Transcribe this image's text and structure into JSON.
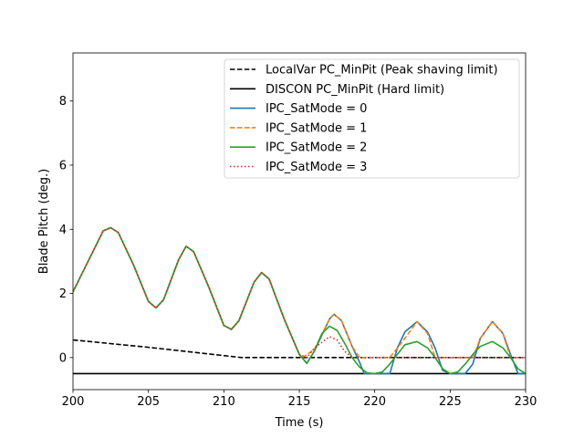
{
  "chart_data": {
    "type": "line",
    "title": "",
    "xlabel": "Time (s)",
    "ylabel": "Blade Pitch (deg.)",
    "xlim": [
      200,
      230
    ],
    "ylim": [
      -1.0,
      9.5
    ],
    "xticks": [
      200,
      205,
      210,
      215,
      220,
      225,
      230
    ],
    "yticks": [
      0,
      2,
      4,
      6,
      8
    ],
    "grid": false,
    "legend_position": "upper right",
    "series": [
      {
        "name": "LocalVar PC_MinPit (Peak shaving limit)",
        "color": "#000000",
        "style": "dashed",
        "x": [
          200,
          205,
          211.2,
          230
        ],
        "y": [
          0.55,
          0.32,
          0.0,
          0.0
        ]
      },
      {
        "name": "DISCON PC_MinPit (Hard limit)",
        "color": "#000000",
        "style": "solid",
        "x": [
          200,
          230
        ],
        "y": [
          -0.5,
          -0.5
        ]
      },
      {
        "name": "IPC_SatMode = 0",
        "color": "#1f77b4",
        "style": "solid",
        "x": [
          200,
          201,
          202,
          202.5,
          203,
          204,
          205,
          205.5,
          206,
          207,
          207.5,
          208,
          209,
          210,
          210.5,
          211,
          212,
          212.5,
          213,
          214,
          215,
          215.5,
          216,
          217,
          217.3,
          217.8,
          218.5,
          219,
          219.3,
          220,
          220.5,
          221,
          221.5,
          222,
          222.8,
          223.5,
          224,
          224.5,
          225,
          225.5,
          226,
          226.5,
          227,
          227.8,
          228.5,
          229,
          229.5,
          230
        ],
        "y": [
          2.05,
          3.0,
          3.95,
          4.05,
          3.9,
          2.9,
          1.75,
          1.55,
          1.8,
          3.05,
          3.47,
          3.3,
          2.2,
          1.0,
          0.88,
          1.15,
          2.35,
          2.65,
          2.45,
          1.2,
          0.1,
          -0.18,
          0.2,
          1.2,
          1.35,
          1.15,
          0.35,
          -0.15,
          -0.5,
          -0.5,
          -0.5,
          -0.5,
          0.3,
          0.8,
          1.12,
          0.8,
          0.3,
          -0.4,
          -0.5,
          -0.5,
          -0.5,
          -0.2,
          0.6,
          1.12,
          0.75,
          0.1,
          -0.5,
          -0.5
        ]
      },
      {
        "name": "IPC_SatMode = 1",
        "color": "#ff7f0e",
        "style": "dashed",
        "x": [
          200,
          201,
          202,
          202.5,
          203,
          204,
          205,
          205.5,
          206,
          207,
          207.5,
          208,
          209,
          210,
          210.5,
          211,
          212,
          212.5,
          213,
          214,
          215,
          215.2,
          216,
          217,
          217.3,
          217.8,
          218.5,
          219,
          220,
          221,
          222,
          222.8,
          223.5,
          224,
          225,
          226,
          226.5,
          227,
          227.8,
          228.5,
          229,
          230
        ],
        "y": [
          2.05,
          3.0,
          3.95,
          4.05,
          3.9,
          2.9,
          1.75,
          1.55,
          1.8,
          3.05,
          3.47,
          3.3,
          2.2,
          1.0,
          0.88,
          1.15,
          2.35,
          2.65,
          2.45,
          1.2,
          0.1,
          0.0,
          0.25,
          1.2,
          1.35,
          1.15,
          0.35,
          0.0,
          0.0,
          0.0,
          0.6,
          1.12,
          0.75,
          0.0,
          0.0,
          0.0,
          0.0,
          0.6,
          1.12,
          0.75,
          0.0,
          0.0
        ]
      },
      {
        "name": "IPC_SatMode = 2",
        "color": "#2ca02c",
        "style": "solid",
        "x": [
          200,
          201,
          202,
          202.5,
          203,
          204,
          205,
          205.5,
          206,
          207,
          207.5,
          208,
          209,
          210,
          210.5,
          211,
          212,
          212.5,
          213,
          214,
          215,
          215.5,
          216,
          216.5,
          217,
          217.5,
          218,
          218.5,
          219,
          219.5,
          220,
          220.5,
          221,
          221.5,
          222,
          222.8,
          223.5,
          224,
          224.5,
          225,
          225.5,
          226,
          226.5,
          227,
          227.8,
          228.5,
          229,
          229.5,
          230
        ],
        "y": [
          2.05,
          3.0,
          3.95,
          4.05,
          3.9,
          2.9,
          1.75,
          1.55,
          1.8,
          3.05,
          3.47,
          3.3,
          2.2,
          1.0,
          0.88,
          1.15,
          2.35,
          2.65,
          2.45,
          1.2,
          0.1,
          -0.18,
          0.2,
          0.75,
          0.98,
          0.85,
          0.45,
          0.0,
          -0.3,
          -0.48,
          -0.5,
          -0.45,
          -0.2,
          0.1,
          0.4,
          0.5,
          0.3,
          0.0,
          -0.35,
          -0.5,
          -0.45,
          -0.2,
          0.1,
          0.35,
          0.5,
          0.3,
          0.0,
          -0.35,
          -0.5
        ]
      },
      {
        "name": "IPC_SatMode = 3",
        "color": "#d62728",
        "style": "dotted",
        "x": [
          200,
          201,
          202,
          202.5,
          203,
          204,
          205,
          205.5,
          206,
          207,
          207.5,
          208,
          209,
          210,
          210.5,
          211,
          212,
          212.5,
          213,
          214,
          215,
          215.5,
          216,
          217,
          217.5,
          218,
          218.5,
          219,
          230
        ],
        "y": [
          2.05,
          3.0,
          3.95,
          4.05,
          3.9,
          2.9,
          1.75,
          1.55,
          1.8,
          3.05,
          3.47,
          3.3,
          2.2,
          1.0,
          0.88,
          1.15,
          2.35,
          2.65,
          2.45,
          1.2,
          0.1,
          0.0,
          0.3,
          0.65,
          0.55,
          0.2,
          0.0,
          0.0,
          0.0
        ]
      }
    ]
  }
}
